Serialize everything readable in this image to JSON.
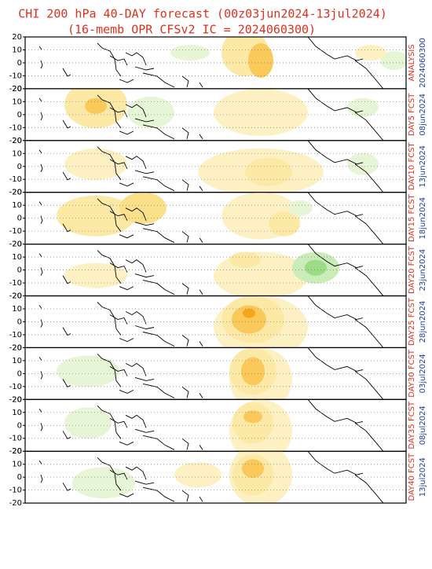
{
  "header": {
    "title": "CHI 200 hPa 40-DAY forecast (00z03jun2024-13jul2024)",
    "subtitle": "(16-memb OPR CFSv2 IC = 2024060300)"
  },
  "yticks": [
    20,
    10,
    0,
    -10,
    -20
  ],
  "panels": [
    {
      "label": "ANALYSIS",
      "date": "2024060300"
    },
    {
      "label": "DAY5 FCST",
      "date": "08jun2024"
    },
    {
      "label": "DAY10 FCST",
      "date": "13jun2024"
    },
    {
      "label": "DAY15 FCST",
      "date": "18jun2024"
    },
    {
      "label": "DAY20 FCST",
      "date": "23jun2024"
    },
    {
      "label": "DAY25 FCST",
      "date": "28jun2024"
    },
    {
      "label": "DAY30 FCST",
      "date": "03jul2024"
    },
    {
      "label": "DAY35 FCST",
      "date": "08jul2024"
    },
    {
      "label": "DAY40 FCST",
      "date": "13jul2024"
    }
  ]
}
